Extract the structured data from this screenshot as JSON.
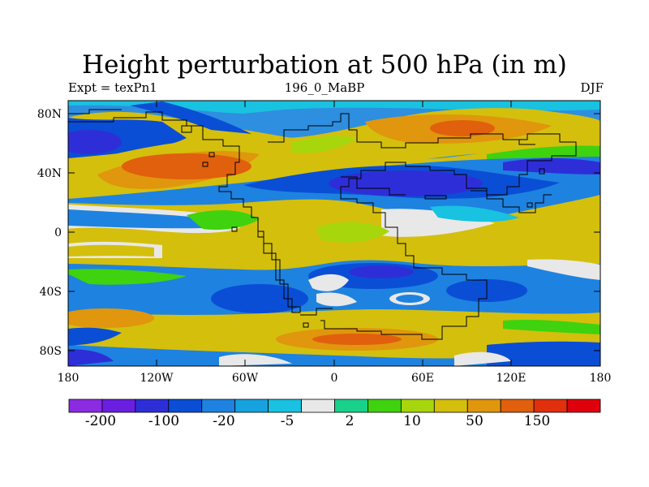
{
  "title": "Height perturbation at 500 hPa (in m)",
  "subtitle_left": "Expt = texPn1",
  "subtitle_center": "196_0_MaBP",
  "subtitle_right": "DJF",
  "lat_ticks": [
    "80N",
    "40N",
    "0",
    "40S",
    "80S"
  ],
  "lon_ticks": [
    "180",
    "120W",
    "60W",
    "0",
    "60E",
    "120E",
    "180"
  ],
  "colorbar": {
    "colors": [
      "#8b2be2",
      "#6a1fe0",
      "#2e2ed8",
      "#0a4ed6",
      "#1e82e0",
      "#16a2df",
      "#18c2e0",
      "#e8e8e8",
      "#19d18a",
      "#3fd20f",
      "#a8d60d",
      "#d4bf0d",
      "#e0960d",
      "#e0600d",
      "#e0300d",
      "#e0000d"
    ],
    "labels": [
      "-200",
      "-100",
      "-20",
      "-5",
      "2",
      "10",
      "50",
      "150"
    ]
  }
}
